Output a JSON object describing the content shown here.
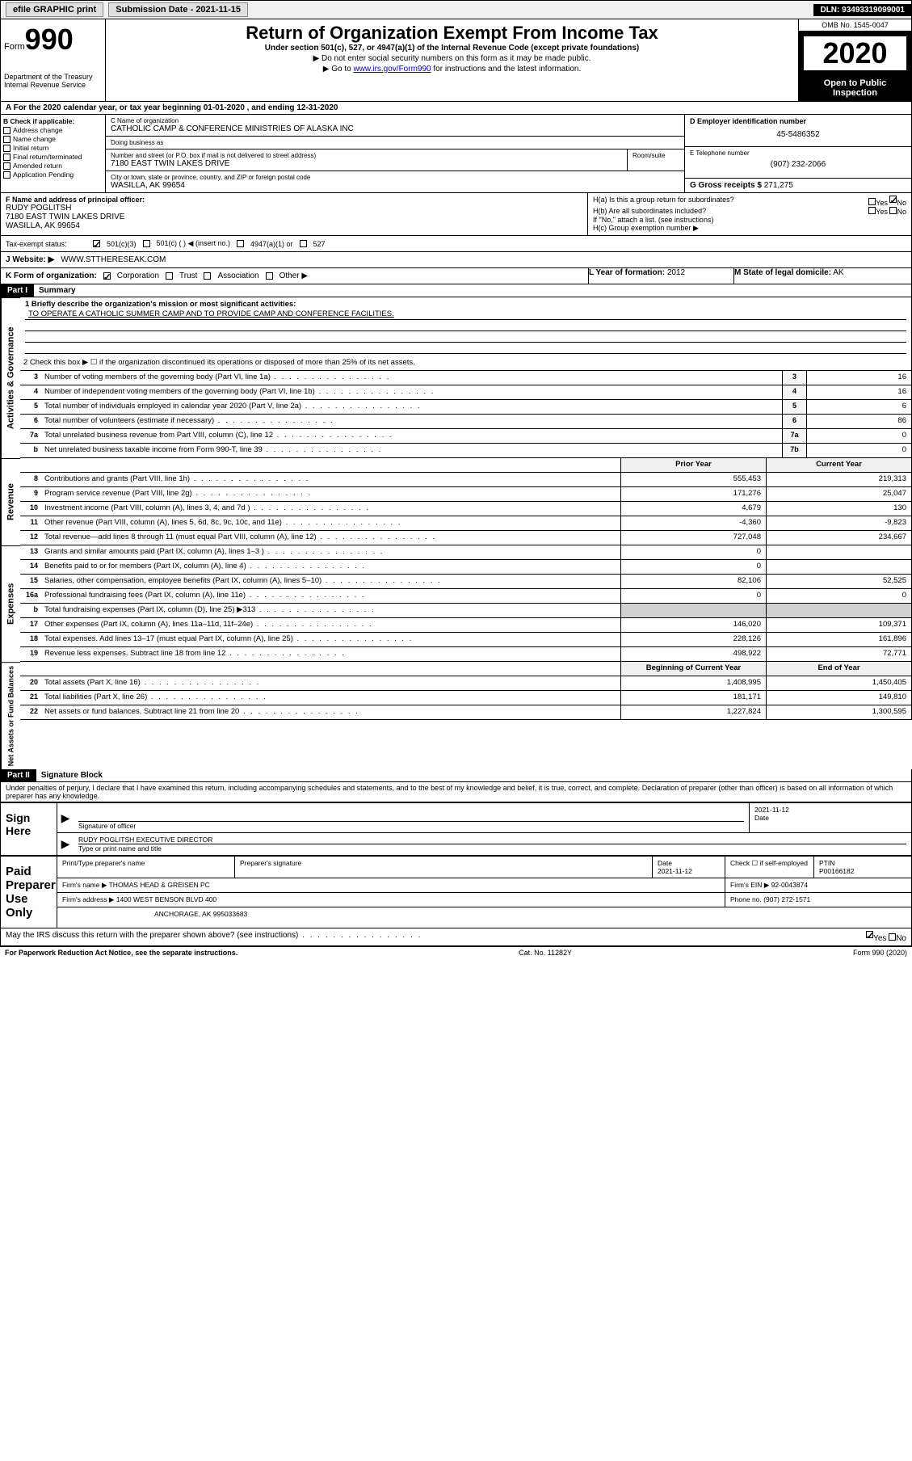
{
  "topbar": {
    "efile": "efile GRAPHIC print",
    "submission_label": "Submission Date - 2021-11-15",
    "dln": "DLN: 93493319099001"
  },
  "header": {
    "form_prefix": "Form",
    "form_number": "990",
    "dept": "Department of the Treasury\nInternal Revenue Service",
    "title": "Return of Organization Exempt From Income Tax",
    "subtitle": "Under section 501(c), 527, or 4947(a)(1) of the Internal Revenue Code (except private foundations)",
    "note1": "▶ Do not enter social security numbers on this form as it may be made public.",
    "note2_prefix": "▶ Go to ",
    "note2_link": "www.irs.gov/Form990",
    "note2_suffix": " for instructions and the latest information.",
    "omb": "OMB No. 1545-0047",
    "year": "2020",
    "open_public": "Open to Public Inspection"
  },
  "period": "A For the 2020 calendar year, or tax year beginning 01-01-2020   , and ending 12-31-2020",
  "section_b": {
    "label": "B Check if applicable:",
    "items": [
      "Address change",
      "Name change",
      "Initial return",
      "Final return/terminated",
      "Amended return",
      "Application Pending"
    ]
  },
  "section_c": {
    "label": "C Name of organization",
    "name": "CATHOLIC CAMP & CONFERENCE MINISTRIES OF ALASKA INC",
    "dba_label": "Doing business as",
    "dba": "",
    "addr_label": "Number and street (or P.O. box if mail is not delivered to street address)",
    "addr": "7180 EAST TWIN LAKES DRIVE",
    "room_label": "Room/suite",
    "city_label": "City or town, state or province, country, and ZIP or foreign postal code",
    "city": "WASILLA, AK  99654"
  },
  "section_d": {
    "label": "D Employer identification number",
    "value": "45-5486352"
  },
  "section_e": {
    "label": "E Telephone number",
    "value": "(907) 232-2066"
  },
  "section_g": {
    "label": "G Gross receipts $",
    "value": "271,275"
  },
  "section_f": {
    "label": "F  Name and address of principal officer:",
    "name": "RUDY POGLITSH",
    "addr": "7180 EAST TWIN LAKES DRIVE",
    "city": "WASILLA, AK  99654"
  },
  "section_h": {
    "a_label": "H(a)  Is this a group return for subordinates?",
    "a_yes": "Yes",
    "a_no": "No",
    "b_label": "H(b)  Are all subordinates included?",
    "b_yes": "Yes",
    "b_no": "No",
    "b_note": "If \"No,\" attach a list. (see instructions)",
    "c_label": "H(c)  Group exemption number ▶"
  },
  "tax_status": {
    "label": "Tax-exempt status:",
    "opt1": "501(c)(3)",
    "opt2": "501(c) (  ) ◀ (insert no.)",
    "opt3": "4947(a)(1) or",
    "opt4": "527"
  },
  "section_j": {
    "label": "J Website: ▶",
    "value": "WWW.STTHERESEAK.COM"
  },
  "section_k": {
    "label": "K Form of organization:",
    "opts": [
      "Corporation",
      "Trust",
      "Association",
      "Other ▶"
    ]
  },
  "section_l": {
    "label": "L Year of formation:",
    "value": "2012"
  },
  "section_m": {
    "label": "M State of legal domicile:",
    "value": "AK"
  },
  "part1": {
    "header": "Part I",
    "title": "Summary",
    "line1_label": "1   Briefly describe the organization's mission or most significant activities:",
    "mission": "TO OPERATE A CATHOLIC SUMMER CAMP AND TO PROVIDE CAMP AND CONFERENCE FACILITIES.",
    "line2": "2   Check this box ▶ ☐  if the organization discontinued its operations or disposed of more than 25% of its net assets.",
    "lines_gov": [
      {
        "n": "3",
        "d": "Number of voting members of the governing body (Part VI, line 1a)",
        "b": "3",
        "v": "16"
      },
      {
        "n": "4",
        "d": "Number of independent voting members of the governing body (Part VI, line 1b)",
        "b": "4",
        "v": "16"
      },
      {
        "n": "5",
        "d": "Total number of individuals employed in calendar year 2020 (Part V, line 2a)",
        "b": "5",
        "v": "6"
      },
      {
        "n": "6",
        "d": "Total number of volunteers (estimate if necessary)",
        "b": "6",
        "v": "86"
      },
      {
        "n": "7a",
        "d": "Total unrelated business revenue from Part VIII, column (C), line 12",
        "b": "7a",
        "v": "0"
      },
      {
        "n": "b",
        "d": "Net unrelated business taxable income from Form 990-T, line 39",
        "b": "7b",
        "v": "0"
      }
    ],
    "col_prior": "Prior Year",
    "col_current": "Current Year",
    "lines_rev": [
      {
        "n": "8",
        "d": "Contributions and grants (Part VIII, line 1h)",
        "p": "555,453",
        "c": "219,313"
      },
      {
        "n": "9",
        "d": "Program service revenue (Part VIII, line 2g)",
        "p": "171,276",
        "c": "25,047"
      },
      {
        "n": "10",
        "d": "Investment income (Part VIII, column (A), lines 3, 4, and 7d )",
        "p": "4,679",
        "c": "130"
      },
      {
        "n": "11",
        "d": "Other revenue (Part VIII, column (A), lines 5, 6d, 8c, 9c, 10c, and 11e)",
        "p": "-4,360",
        "c": "-9,823"
      },
      {
        "n": "12",
        "d": "Total revenue—add lines 8 through 11 (must equal Part VIII, column (A), line 12)",
        "p": "727,048",
        "c": "234,667"
      }
    ],
    "lines_exp": [
      {
        "n": "13",
        "d": "Grants and similar amounts paid (Part IX, column (A), lines 1–3 )",
        "p": "0",
        "c": ""
      },
      {
        "n": "14",
        "d": "Benefits paid to or for members (Part IX, column (A), line 4)",
        "p": "0",
        "c": ""
      },
      {
        "n": "15",
        "d": "Salaries, other compensation, employee benefits (Part IX, column (A), lines 5–10)",
        "p": "82,106",
        "c": "52,525"
      },
      {
        "n": "16a",
        "d": "Professional fundraising fees (Part IX, column (A), line 11e)",
        "p": "0",
        "c": "0"
      },
      {
        "n": "b",
        "d": "Total fundraising expenses (Part IX, column (D), line 25) ▶313",
        "p": "",
        "c": "",
        "shade": true
      },
      {
        "n": "17",
        "d": "Other expenses (Part IX, column (A), lines 11a–11d, 11f–24e)",
        "p": "146,020",
        "c": "109,371"
      },
      {
        "n": "18",
        "d": "Total expenses. Add lines 13–17 (must equal Part IX, column (A), line 25)",
        "p": "228,126",
        "c": "161,896"
      },
      {
        "n": "19",
        "d": "Revenue less expenses. Subtract line 18 from line 12",
        "p": "498,922",
        "c": "72,771"
      }
    ],
    "col_begin": "Beginning of Current Year",
    "col_end": "End of Year",
    "lines_net": [
      {
        "n": "20",
        "d": "Total assets (Part X, line 16)",
        "p": "1,408,995",
        "c": "1,450,405"
      },
      {
        "n": "21",
        "d": "Total liabilities (Part X, line 26)",
        "p": "181,171",
        "c": "149,810"
      },
      {
        "n": "22",
        "d": "Net assets or fund balances. Subtract line 21 from line 20",
        "p": "1,227,824",
        "c": "1,300,595"
      }
    ]
  },
  "part2": {
    "header": "Part II",
    "title": "Signature Block",
    "penalties": "Under penalties of perjury, I declare that I have examined this return, including accompanying schedules and statements, and to the best of my knowledge and belief, it is true, correct, and complete. Declaration of preparer (other than officer) is based on all information of which preparer has any knowledge."
  },
  "sign": {
    "label": "Sign Here",
    "sig_officer": "Signature of officer",
    "date_label": "Date",
    "date": "2021-11-12",
    "name_title": "RUDY POGLITSH  EXECUTIVE DIRECTOR",
    "type_label": "Type or print name and title"
  },
  "preparer": {
    "label": "Paid Preparer Use Only",
    "print_name_label": "Print/Type preparer's name",
    "sig_label": "Preparer's signature",
    "date_label": "Date",
    "date": "2021-11-12",
    "check_label": "Check ☐ if self-employed",
    "ptin_label": "PTIN",
    "ptin": "P00166182",
    "firm_name_label": "Firm's name    ▶",
    "firm_name": "THOMAS HEAD & GREISEN PC",
    "firm_ein_label": "Firm's EIN ▶",
    "firm_ein": "92-0043874",
    "firm_addr_label": "Firm's address ▶",
    "firm_addr1": "1400 WEST BENSON BLVD 400",
    "firm_addr2": "ANCHORAGE, AK  995033683",
    "phone_label": "Phone no.",
    "phone": "(907) 272-1571"
  },
  "discuss": {
    "label": "May the IRS discuss this return with the preparer shown above? (see instructions)",
    "yes": "Yes",
    "no": "No"
  },
  "footer": {
    "left": "For Paperwork Reduction Act Notice, see the separate instructions.",
    "mid": "Cat. No. 11282Y",
    "right": "Form 990 (2020)"
  },
  "vtabs": {
    "gov": "Activities & Governance",
    "rev": "Revenue",
    "exp": "Expenses",
    "net": "Net Assets or Fund Balances"
  }
}
